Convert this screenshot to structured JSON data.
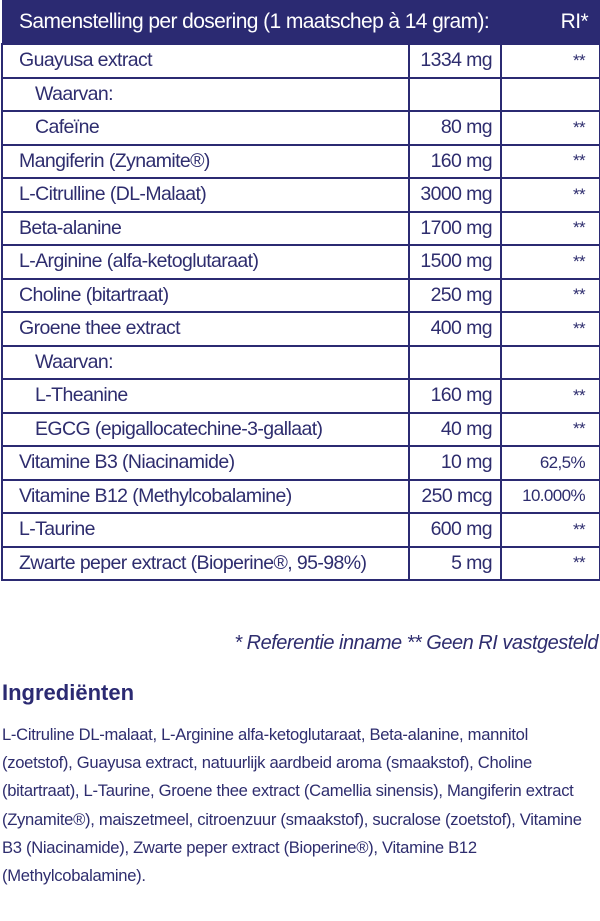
{
  "table": {
    "header": {
      "label": "Samenstelling per dosering (1 maatschep à 14 gram):",
      "ri": "RI*"
    },
    "rows": [
      {
        "name": "Guayusa extract",
        "amount": "1334 mg",
        "ri": "**",
        "indent": false
      },
      {
        "name": "Waarvan:",
        "amount": "",
        "ri": "",
        "indent": true
      },
      {
        "name": "Cafeïne",
        "amount": "80 mg",
        "ri": "**",
        "indent": true
      },
      {
        "name": "Mangiferin (Zynamite®)",
        "amount": "160 mg",
        "ri": "**",
        "indent": false
      },
      {
        "name": "L-Citrulline (DL-Malaat)",
        "amount": "3000 mg",
        "ri": "**",
        "indent": false
      },
      {
        "name": "Beta-alanine",
        "amount": "1700 mg",
        "ri": "**",
        "indent": false
      },
      {
        "name": "L-Arginine (alfa-ketoglutaraat)",
        "amount": "1500 mg",
        "ri": "**",
        "indent": false
      },
      {
        "name": "Choline (bitartraat)",
        "amount": "250 mg",
        "ri": "**",
        "indent": false
      },
      {
        "name": "Groene thee extract",
        "amount": "400 mg",
        "ri": "**",
        "indent": false
      },
      {
        "name": "Waarvan:",
        "amount": "",
        "ri": "",
        "indent": true
      },
      {
        "name": "L-Theanine",
        "amount": "160 mg",
        "ri": "**",
        "indent": true
      },
      {
        "name": "EGCG (epigallocatechine-3-gallaat)",
        "amount": "40 mg",
        "ri": "**",
        "indent": true
      },
      {
        "name": "Vitamine B3 (Niacinamide)",
        "amount": "10 mg",
        "ri": "62,5%",
        "indent": false
      },
      {
        "name": "Vitamine B12 (Methylcobalamine)",
        "amount": "250 mcg",
        "ri": "10.000%",
        "indent": false
      },
      {
        "name": "L-Taurine",
        "amount": "600 mg",
        "ri": "**",
        "indent": false
      },
      {
        "name": "Zwarte peper extract (Bioperine®, 95-98%)",
        "amount": "5 mg",
        "ri": "**",
        "indent": false
      }
    ]
  },
  "footnote": "* Referentie inname  ** Geen RI vastgesteld",
  "ingredients": {
    "title": "Ingrediënten",
    "text": "L-Citruline DL-malaat, L-Arginine alfa-ketoglutaraat, Beta-alanine, mannitol (zoetstof), Guayusa extract, natuurlijk aardbeid aroma (smaakstof), Choline (bitartraat), L-Taurine, Groene thee extract (Camellia sinensis), Mangiferin extract (Zynamite®), maiszetmeel, citroenzuur (smaakstof), sucralose (zoetstof), Vitamine B3 (Niacinamide), Zwarte peper extract (Bioperine®), Vitamine B12 (Methylcobalamine)."
  },
  "colors": {
    "brand": "#2b2a72",
    "text": "#2e2d6e"
  }
}
